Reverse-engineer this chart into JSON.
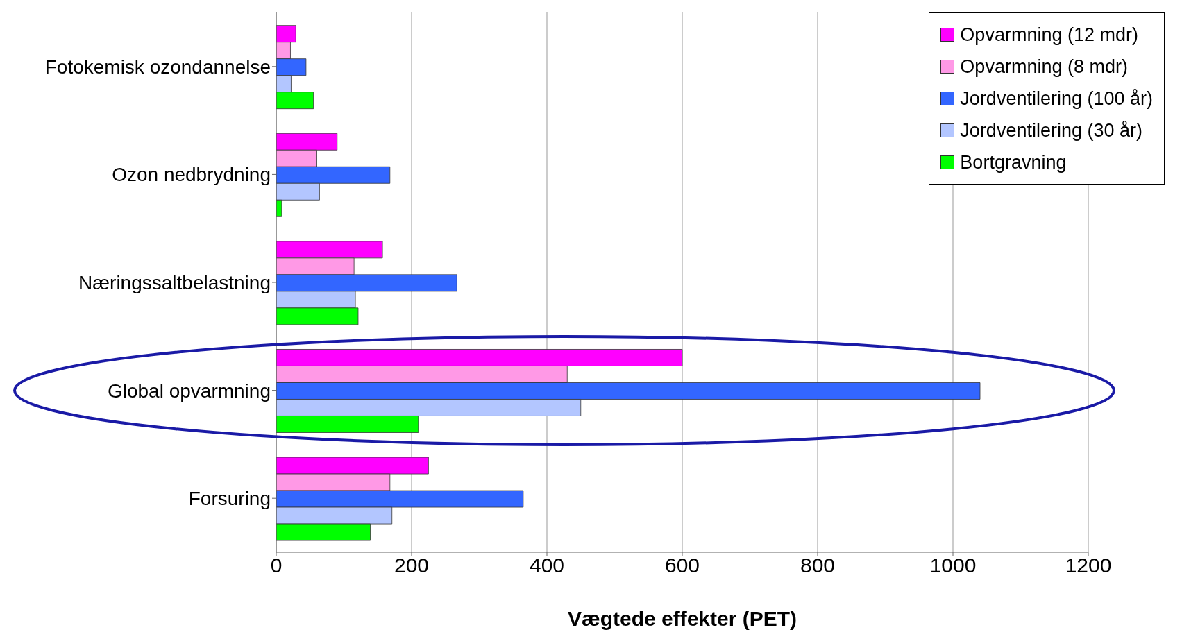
{
  "chart_data": {
    "type": "bar",
    "orientation": "horizontal",
    "xlabel": "Vægtede effekter (PET)",
    "categories": [
      "Fotokemisk ozondannelse",
      "Ozon nedbrydning",
      "Næringssaltbelastning",
      "Global opvarmning",
      "Forsuring"
    ],
    "series": [
      {
        "name": "Opvarmning (12 mdr)",
        "color": "#ff00ff",
        "values": [
          29,
          90,
          157,
          600,
          225
        ]
      },
      {
        "name": "Opvarmning (8 mdr)",
        "color": "#ff99e6",
        "values": [
          21,
          60,
          115,
          430,
          168
        ]
      },
      {
        "name": "Jordventilering (100 år)",
        "color": "#3366ff",
        "values": [
          44,
          168,
          267,
          1040,
          365
        ]
      },
      {
        "name": "Jordventilering (30 år)",
        "color": "#b3c6ff",
        "values": [
          22,
          64,
          117,
          450,
          171
        ]
      },
      {
        "name": "Bortgravning",
        "color": "#00ff00",
        "values": [
          55,
          8,
          121,
          210,
          139
        ]
      }
    ],
    "xlim": [
      0,
      1200
    ],
    "xticks": [
      0,
      200,
      400,
      600,
      800,
      1000,
      1200
    ],
    "grid": "x",
    "legend": "top right"
  }
}
